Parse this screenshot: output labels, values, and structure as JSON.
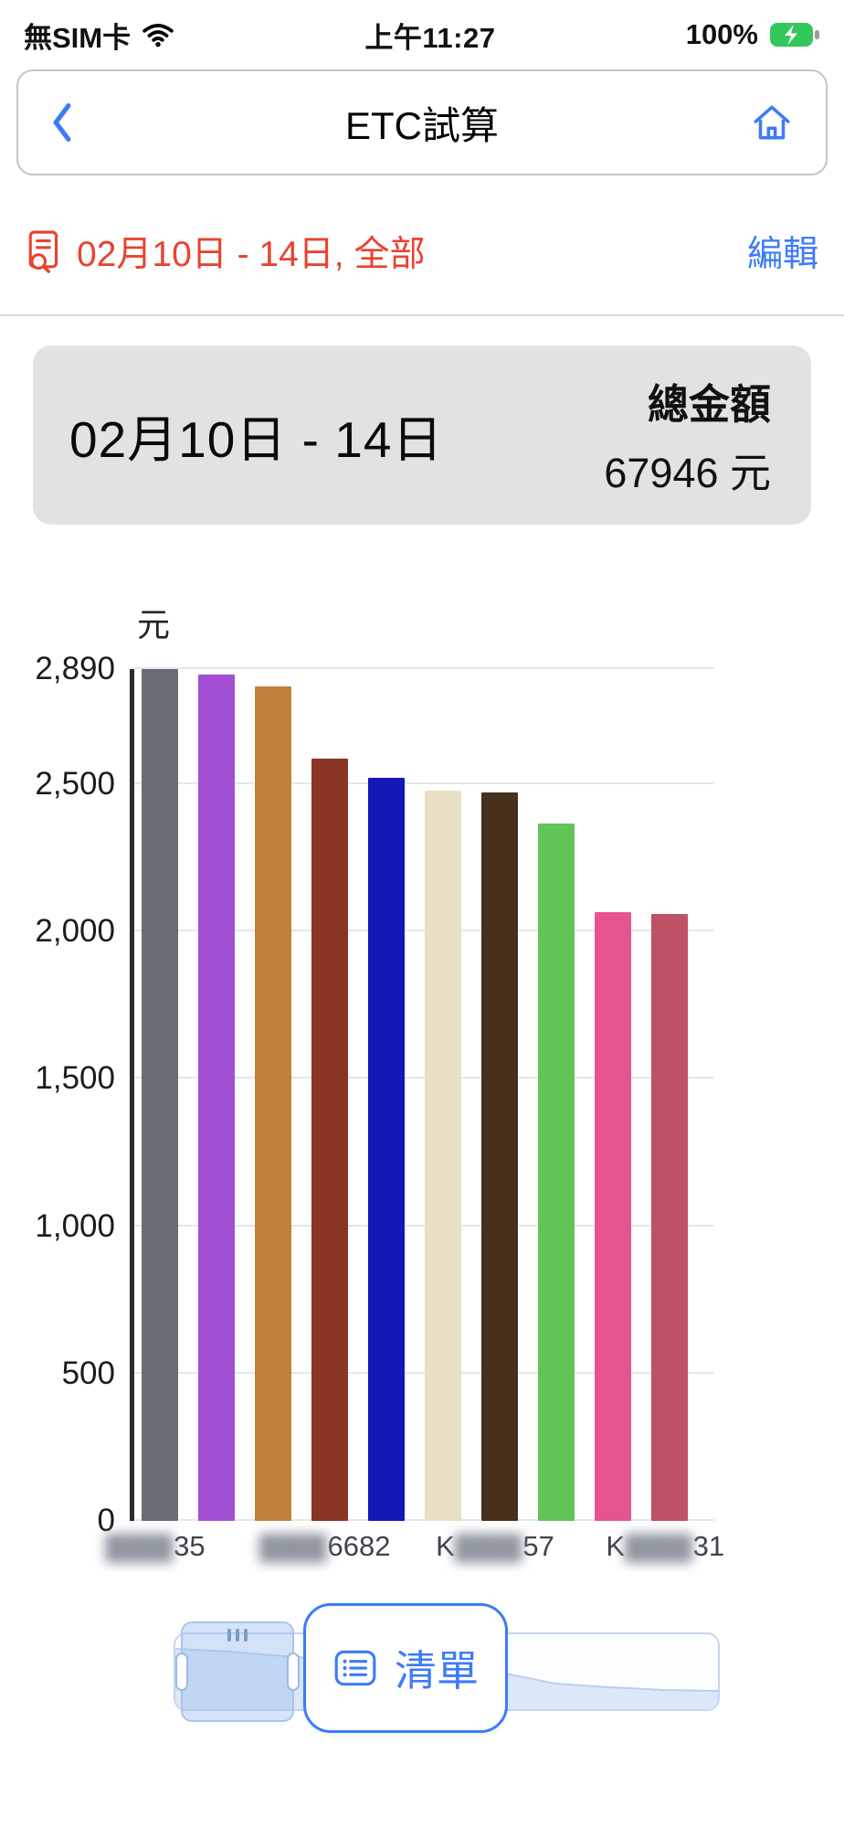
{
  "theme": {
    "accent_blue": "#3d7bf7",
    "alert_red": "#e8432f",
    "battery_green": "#34c759",
    "card_gray": "#e2e2e4"
  },
  "status_bar": {
    "carrier": "無SIM卡",
    "time": "上午11:27",
    "battery_percent": "100%"
  },
  "nav": {
    "title": "ETC試算"
  },
  "filter": {
    "label": "02月10日 - 14日, 全部",
    "edit_label": "編輯"
  },
  "summary": {
    "period": "02月10日 - 14日",
    "total_label": "總金額",
    "total_value": "67946 元"
  },
  "chart_data": {
    "type": "bar",
    "title": "",
    "unit_label": "元",
    "ylim": [
      0,
      2890
    ],
    "y_ticks": [
      "2,890",
      "2,500",
      "2,000",
      "1,500",
      "1,000",
      "500",
      "0"
    ],
    "y_tick_values": [
      2890,
      2500,
      2000,
      1500,
      1000,
      500,
      0
    ],
    "grid": true,
    "values": [
      2890,
      2870,
      2830,
      2585,
      2520,
      2478,
      2470,
      2365,
      2065,
      2058
    ],
    "colors": [
      "#696d74",
      "#a34fd3",
      "#c2803f",
      "#8a3524",
      "#1517b8",
      "#e9dfc4",
      "#47311d",
      "#61c457",
      "#e5548e",
      "#bf5166"
    ],
    "x_labels": [
      {
        "prefix": "",
        "visible": "35",
        "redacted": true
      },
      {
        "prefix": "",
        "visible": "6682",
        "redacted": true
      },
      {
        "prefix": "K",
        "visible": "57",
        "redacted": true
      },
      {
        "prefix": "K",
        "visible": "31",
        "redacted": true
      }
    ],
    "x_label_positions_pct": [
      4.4,
      33.4,
      62.5,
      91.6
    ]
  },
  "footer": {
    "list_button_label": "清單"
  }
}
